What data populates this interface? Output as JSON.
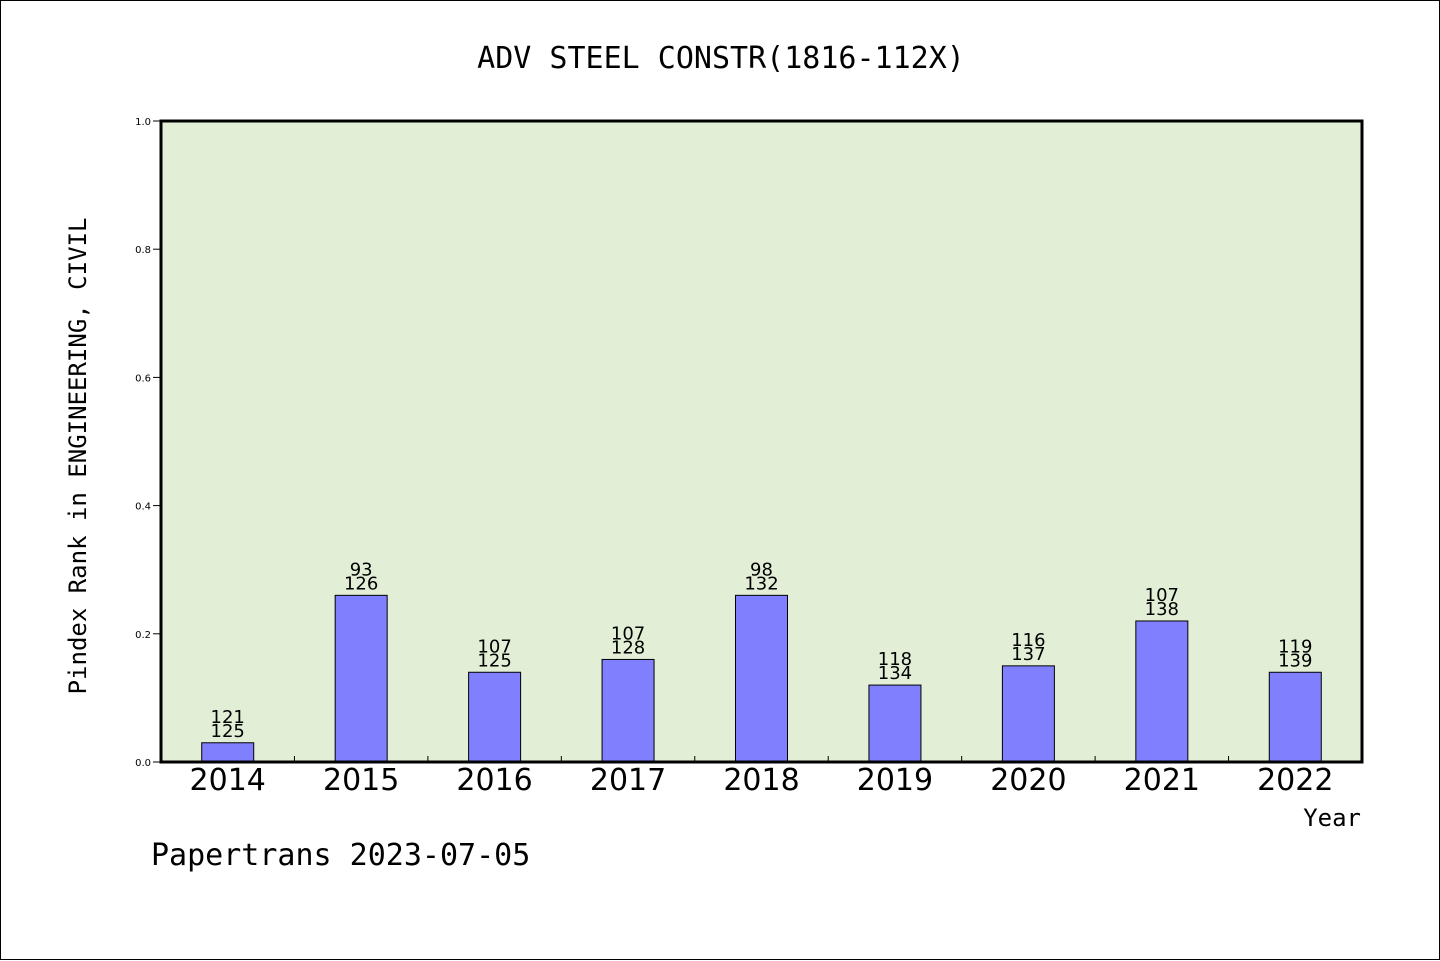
{
  "chart_data": {
    "type": "bar",
    "title": "ADV STEEL CONSTR(1816-112X)",
    "xlabel": "Year",
    "ylabel": "Pindex Rank in ENGINEERING, CIVIL",
    "credit": "Papertrans 2023-07-05",
    "ylim": [
      0,
      1.0
    ],
    "yticks": [
      "0.0",
      "0.2",
      "0.4",
      "0.6",
      "0.8",
      "1.0"
    ],
    "grid": false,
    "categories": [
      "2014",
      "2015",
      "2016",
      "2017",
      "2018",
      "2019",
      "2020",
      "2021",
      "2022"
    ],
    "series": [
      {
        "values": [
          0.03,
          0.26,
          0.14,
          0.16,
          0.26,
          0.12,
          0.15,
          0.22,
          0.14
        ]
      }
    ],
    "annotations": [
      {
        "rank": "121",
        "total": "125"
      },
      {
        "rank": "93",
        "total": "126"
      },
      {
        "rank": "107",
        "total": "125"
      },
      {
        "rank": "107",
        "total": "128"
      },
      {
        "rank": "98",
        "total": "132"
      },
      {
        "rank": "118",
        "total": "134"
      },
      {
        "rank": "116",
        "total": "137"
      },
      {
        "rank": "107",
        "total": "138"
      },
      {
        "rank": "119",
        "total": "139"
      }
    ],
    "colors": {
      "plot_background": "#e2efd6",
      "bar_fill": "#8080ff",
      "bar_stroke": "#000000",
      "axis": "#000000"
    }
  }
}
